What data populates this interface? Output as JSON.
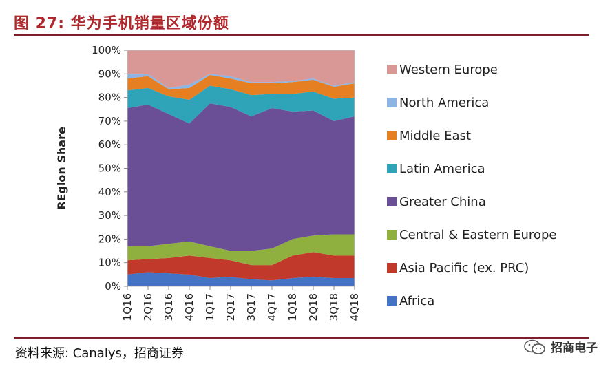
{
  "figure": {
    "title": "图 27:  华为手机销量区域份额",
    "source": "资料来源:  Canalys，招商证券",
    "watermark": "招商电子"
  },
  "chart_data": {
    "type": "area",
    "stacked": true,
    "percent": true,
    "ylabel": "REgion Share",
    "xlabel": "",
    "ylim": [
      0,
      100
    ],
    "yticks": [
      "0%",
      "10%",
      "20%",
      "30%",
      "40%",
      "50%",
      "60%",
      "70%",
      "80%",
      "90%",
      "100%"
    ],
    "categories": [
      "1Q16",
      "2Q16",
      "3Q16",
      "4Q16",
      "1Q17",
      "2Q17",
      "3Q17",
      "4Q17",
      "1Q18",
      "2Q18",
      "3Q18",
      "4Q18"
    ],
    "legend_position": "right",
    "series": [
      {
        "name": "Africa",
        "color": "#4472c4",
        "values": [
          5,
          6,
          5.5,
          5,
          3.5,
          4,
          3,
          2.5,
          3.5,
          4,
          3.5,
          3.5
        ]
      },
      {
        "name": "Asia Pacific (ex. PRC)",
        "color": "#c0392b",
        "values": [
          6,
          5.5,
          6.5,
          8,
          8.5,
          7,
          6,
          6.5,
          9.5,
          10.5,
          9.5,
          9.5
        ]
      },
      {
        "name": "Central & Eastern Europe",
        "color": "#8fb03e",
        "values": [
          6,
          5.5,
          6,
          6,
          5,
          4,
          6,
          7,
          7,
          7,
          9,
          9
        ]
      },
      {
        "name": "Greater China",
        "color": "#6b4f96",
        "values": [
          58.5,
          60,
          55,
          50,
          60.5,
          61,
          57,
          59.5,
          54,
          53,
          48,
          50
        ]
      },
      {
        "name": "Latin America",
        "color": "#2fa3b8",
        "values": [
          7.5,
          7,
          7.5,
          10,
          7.5,
          7.5,
          9,
          6,
          7.5,
          8,
          9.5,
          8
        ]
      },
      {
        "name": "Middle East",
        "color": "#e67e22",
        "values": [
          5,
          5,
          3,
          5,
          4.5,
          4.5,
          5,
          4.5,
          5,
          5,
          5,
          6
        ]
      },
      {
        "name": "North America",
        "color": "#8db4e2",
        "values": [
          2,
          1,
          0.5,
          1.5,
          0.5,
          1,
          0.5,
          0.5,
          0.5,
          0.5,
          0.5,
          0.5
        ]
      },
      {
        "name": "Western Europe",
        "color": "#d99795",
        "values": [
          10,
          10,
          16,
          14.5,
          10,
          11,
          13.5,
          13.5,
          13,
          12,
          15,
          13.5
        ]
      }
    ]
  }
}
